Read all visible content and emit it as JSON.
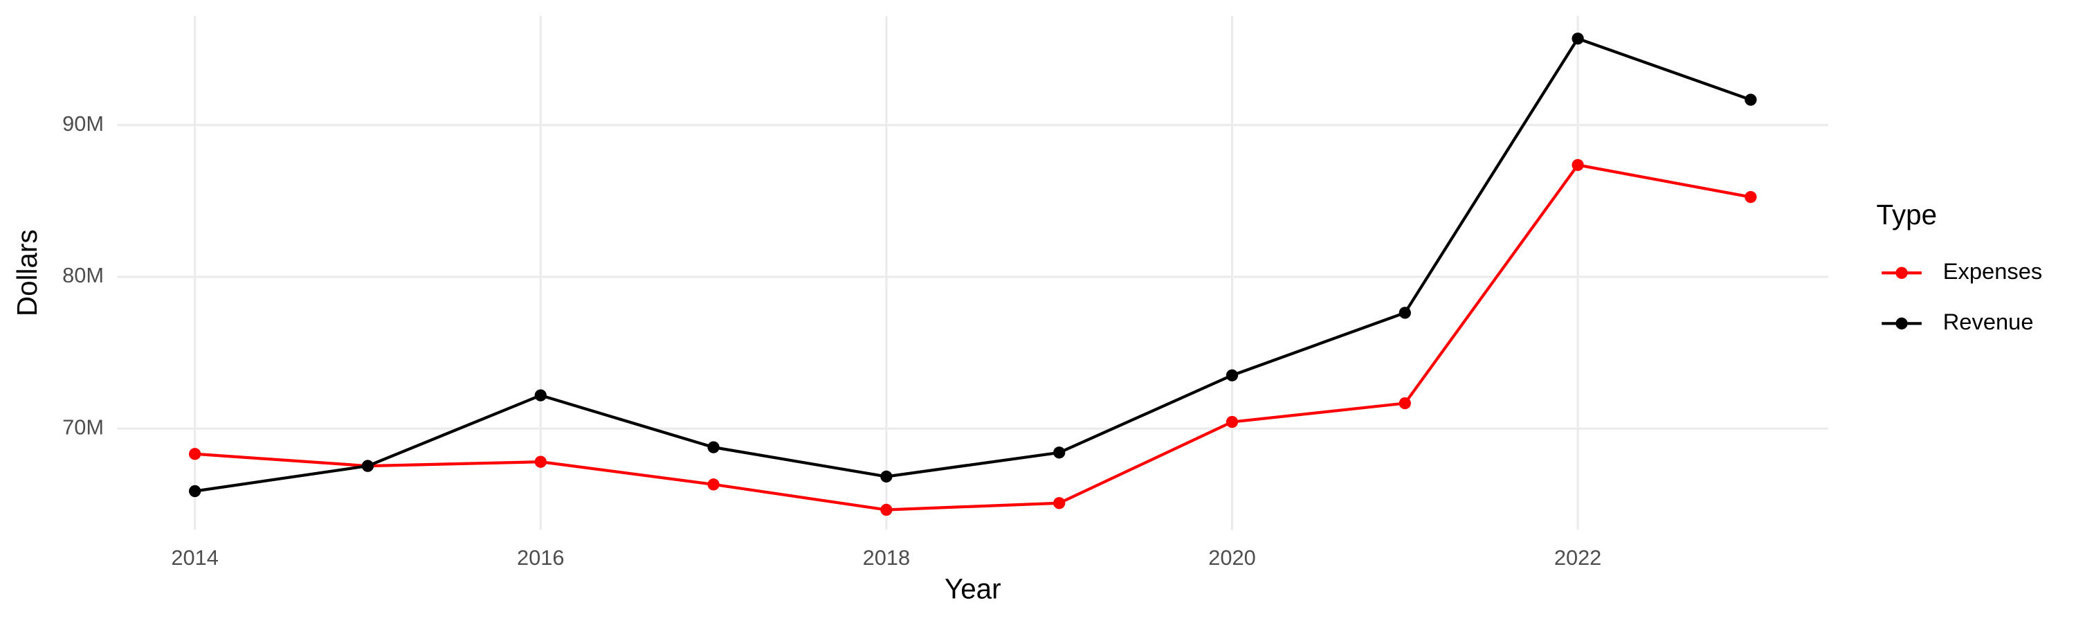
{
  "chart_data": {
    "type": "line",
    "x_label": "Year",
    "y_label": "Dollars",
    "legend_title": "Type",
    "x": [
      2014,
      2015,
      2016,
      2017,
      2018,
      2019,
      2020,
      2021,
      2022,
      2023
    ],
    "series": [
      {
        "name": "Expenses",
        "color": "#ff0000",
        "values": [
          68330000,
          67540000,
          67810000,
          66320000,
          64650000,
          65090000,
          70440000,
          71670000,
          87370000,
          85260000
        ]
      },
      {
        "name": "Revenue",
        "color": "#000000",
        "values": [
          65880000,
          67540000,
          72190000,
          68770000,
          66840000,
          68420000,
          73510000,
          77630000,
          95700000,
          91670000
        ]
      }
    ],
    "xlim": [
      2013.55,
      2023.45
    ],
    "xticks": [
      2014,
      2016,
      2018,
      2020,
      2022
    ],
    "ylim": [
      63330000,
      97190000
    ],
    "yticks": [
      {
        "value": 70000000,
        "label": "70M"
      },
      {
        "value": 80000000,
        "label": "80M"
      },
      {
        "value": 90000000,
        "label": "90M"
      }
    ],
    "grid": true,
    "legend": "right"
  }
}
